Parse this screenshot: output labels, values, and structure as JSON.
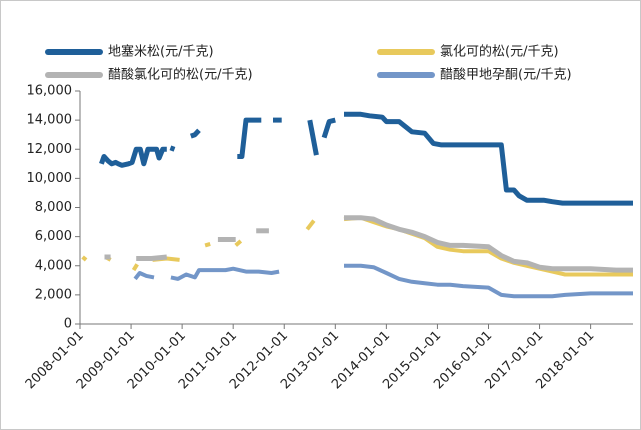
{
  "chart_data": {
    "type": "line",
    "title": "",
    "xlabel": "",
    "ylabel": "",
    "ylim": [
      0,
      16000
    ],
    "yticks": [
      0,
      2000,
      4000,
      6000,
      8000,
      10000,
      12000,
      14000,
      16000
    ],
    "ytick_labels": [
      "0",
      "2,000",
      "4,000",
      "6,000",
      "8,000",
      "10,000",
      "12,000",
      "14,000",
      "16,000"
    ],
    "xlim": [
      2008.0,
      2018.83
    ],
    "xticks": [
      2008,
      2009,
      2010,
      2011,
      2012,
      2013,
      2014,
      2015,
      2016,
      2017,
      2018
    ],
    "xtick_labels": [
      "2008-01-01",
      "2009-01-01",
      "2010-01-01",
      "2011-01-01",
      "2012-01-01",
      "2013-01-01",
      "2014-01-01",
      "2015-01-01",
      "2016-01-01",
      "2017-01-01",
      "2018-01-01"
    ],
    "legend_position": "top",
    "series": [
      {
        "name": "地塞米松(元/千克)",
        "color": "#1f5f99",
        "stroke": 5,
        "segments": [
          [
            [
              2008.42,
              11000
            ],
            [
              2008.47,
              11500
            ],
            [
              2008.55,
              11200
            ],
            [
              2008.62,
              11000
            ],
            [
              2008.7,
              11100
            ],
            [
              2008.75,
              11000
            ],
            [
              2008.82,
              10900
            ],
            [
              2008.95,
              11000
            ],
            [
              2009.02,
              11100
            ],
            [
              2009.1,
              12000
            ],
            [
              2009.18,
              12000
            ],
            [
              2009.25,
              11000
            ],
            [
              2009.33,
              12000
            ],
            [
              2009.42,
              12000
            ],
            [
              2009.5,
              12000
            ],
            [
              2009.55,
              11400
            ],
            [
              2009.62,
              12000
            ],
            [
              2009.7,
              12000
            ]
          ],
          [
            [
              2009.77,
              12100
            ],
            [
              2009.85,
              12000
            ]
          ],
          [
            [
              2010.17,
              12900
            ],
            [
              2010.25,
              13000
            ],
            [
              2010.33,
              13300
            ]
          ],
          [
            [
              2011.08,
              11500
            ],
            [
              2011.17,
              11500
            ],
            [
              2011.25,
              14000
            ],
            [
              2011.42,
              14000
            ],
            [
              2011.55,
              14000
            ]
          ],
          [
            [
              2011.78,
              14000
            ],
            [
              2011.95,
              14000
            ]
          ],
          [
            [
              2012.5,
              14000
            ],
            [
              2012.63,
              11600
            ]
          ],
          [
            [
              2012.78,
              12800
            ],
            [
              2012.88,
              13900
            ],
            [
              2013.0,
              14000
            ]
          ],
          [
            [
              2013.17,
              14400
            ],
            [
              2013.5,
              14400
            ],
            [
              2013.67,
              14300
            ],
            [
              2013.92,
              14200
            ],
            [
              2014.0,
              13900
            ],
            [
              2014.25,
              13900
            ],
            [
              2014.5,
              13200
            ],
            [
              2014.75,
              13100
            ],
            [
              2014.92,
              12400
            ],
            [
              2015.08,
              12300
            ],
            [
              2015.33,
              12300
            ],
            [
              2016.0,
              12300
            ],
            [
              2016.25,
              12300
            ],
            [
              2016.35,
              9200
            ],
            [
              2016.5,
              9200
            ],
            [
              2016.6,
              8800
            ],
            [
              2016.75,
              8500
            ],
            [
              2017.08,
              8500
            ],
            [
              2017.25,
              8400
            ],
            [
              2017.45,
              8300
            ],
            [
              2018.0,
              8300
            ],
            [
              2018.83,
              8300
            ]
          ]
        ]
      },
      {
        "name": "氯化可的松(元/千克)",
        "color": "#e8c95c",
        "stroke": 4,
        "segments": [
          [
            [
              2008.05,
              4600
            ],
            [
              2008.12,
              4400
            ]
          ],
          [
            [
              2008.5,
              4600
            ],
            [
              2008.6,
              4400
            ]
          ],
          [
            [
              2009.05,
              3700
            ],
            [
              2009.12,
              4100
            ]
          ],
          [
            [
              2009.42,
              4400
            ],
            [
              2009.7,
              4500
            ],
            [
              2009.95,
              4400
            ]
          ],
          [
            [
              2010.45,
              5400
            ],
            [
              2010.55,
              5500
            ]
          ],
          [
            [
              2011.05,
              5400
            ],
            [
              2011.15,
              5700
            ]
          ],
          [
            [
              2012.45,
              6500
            ],
            [
              2012.58,
              7100
            ]
          ],
          [
            [
              2013.17,
              7200
            ],
            [
              2013.5,
              7300
            ],
            [
              2013.75,
              7000
            ],
            [
              2014.0,
              6700
            ],
            [
              2014.25,
              6500
            ],
            [
              2014.5,
              6200
            ],
            [
              2014.75,
              5900
            ],
            [
              2015.0,
              5300
            ],
            [
              2015.25,
              5100
            ],
            [
              2015.5,
              5000
            ],
            [
              2016.0,
              5000
            ],
            [
              2016.25,
              4500
            ],
            [
              2016.5,
              4200
            ],
            [
              2016.75,
              4000
            ],
            [
              2017.0,
              3800
            ],
            [
              2017.25,
              3600
            ],
            [
              2017.5,
              3400
            ],
            [
              2018.0,
              3400
            ],
            [
              2018.83,
              3400
            ]
          ]
        ]
      },
      {
        "name": "醋酸氯化可的松(元/千克)",
        "color": "#b3b3b3",
        "stroke": 5,
        "segments": [
          [
            [
              2008.48,
              4600
            ],
            [
              2008.6,
              4600
            ]
          ],
          [
            [
              2009.1,
              4500
            ],
            [
              2009.4,
              4500
            ],
            [
              2009.7,
              4600
            ]
          ],
          [
            [
              2010.7,
              5800
            ],
            [
              2011.05,
              5800
            ]
          ],
          [
            [
              2011.45,
              6400
            ],
            [
              2011.7,
              6400
            ]
          ],
          [
            [
              2013.17,
              7300
            ],
            [
              2013.5,
              7300
            ],
            [
              2013.75,
              7200
            ],
            [
              2014.0,
              6800
            ],
            [
              2014.25,
              6500
            ],
            [
              2014.5,
              6300
            ],
            [
              2014.75,
              6000
            ],
            [
              2015.0,
              5600
            ],
            [
              2015.25,
              5400
            ],
            [
              2015.5,
              5400
            ],
            [
              2016.0,
              5300
            ],
            [
              2016.25,
              4700
            ],
            [
              2016.5,
              4300
            ],
            [
              2016.75,
              4200
            ],
            [
              2017.0,
              3900
            ],
            [
              2017.25,
              3800
            ],
            [
              2018.0,
              3800
            ],
            [
              2018.5,
              3700
            ],
            [
              2018.83,
              3700
            ]
          ]
        ]
      },
      {
        "name": "醋酸甲地孕酮(元/千克)",
        "color": "#7396c8",
        "stroke": 4,
        "segments": [
          [
            [
              2009.08,
              3100
            ],
            [
              2009.17,
              3500
            ],
            [
              2009.3,
              3300
            ],
            [
              2009.45,
              3200
            ]
          ],
          [
            [
              2009.78,
              3200
            ],
            [
              2009.92,
              3100
            ],
            [
              2010.08,
              3400
            ],
            [
              2010.25,
              3200
            ],
            [
              2010.33,
              3700
            ],
            [
              2010.6,
              3700
            ],
            [
              2010.85,
              3700
            ],
            [
              2011.0,
              3800
            ],
            [
              2011.25,
              3600
            ],
            [
              2011.5,
              3600
            ],
            [
              2011.75,
              3500
            ],
            [
              2011.9,
              3600
            ]
          ],
          [
            [
              2013.17,
              4000
            ],
            [
              2013.5,
              4000
            ],
            [
              2013.75,
              3900
            ],
            [
              2014.0,
              3500
            ],
            [
              2014.25,
              3100
            ],
            [
              2014.5,
              2900
            ],
            [
              2014.75,
              2800
            ],
            [
              2015.0,
              2700
            ],
            [
              2015.25,
              2700
            ],
            [
              2015.5,
              2600
            ],
            [
              2016.0,
              2500
            ],
            [
              2016.25,
              2000
            ],
            [
              2016.5,
              1900
            ],
            [
              2016.75,
              1900
            ],
            [
              2017.0,
              1900
            ],
            [
              2017.25,
              1900
            ],
            [
              2017.5,
              2000
            ],
            [
              2018.0,
              2100
            ],
            [
              2018.83,
              2100
            ]
          ]
        ]
      }
    ]
  }
}
